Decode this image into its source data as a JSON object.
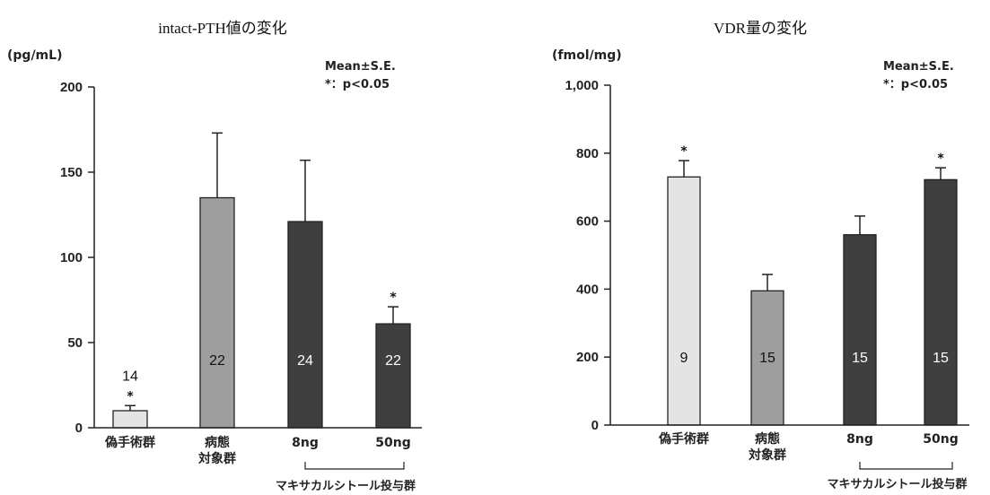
{
  "chart_data": [
    {
      "type": "bar",
      "title": "intact-PTH値の変化",
      "unit_label": "(pg/mL)",
      "legend_note": [
        "Mean±S.E.",
        "*：p<0.05"
      ],
      "categories": [
        [
          "偽手術群"
        ],
        [
          "病態",
          "対象群"
        ],
        [
          "8ng"
        ],
        [
          "50ng"
        ]
      ],
      "group_label": "マキサカルシトール投与群",
      "ylim": [
        0,
        200
      ],
      "yticks": [
        0,
        50,
        100,
        150,
        200
      ],
      "ytick_labels": [
        "0",
        "50",
        "100",
        "150",
        "200"
      ],
      "values": [
        10,
        135,
        121,
        61
      ],
      "errors": [
        3,
        38,
        36,
        10
      ],
      "n_labels": [
        "14",
        "22",
        "24",
        "22"
      ],
      "significant": [
        true,
        false,
        false,
        true
      ],
      "bar_colors": [
        "#e4e4e4",
        "#9e9e9e",
        "#3f3f3f",
        "#3f3f3f"
      ]
    },
    {
      "type": "bar",
      "title": "VDR量の変化",
      "unit_label": "(fmol/mg)",
      "legend_note": [
        "Mean±S.E.",
        "*：p<0.05"
      ],
      "categories": [
        [
          "偽手術群"
        ],
        [
          "病態",
          "対象群"
        ],
        [
          "8ng"
        ],
        [
          "50ng"
        ]
      ],
      "group_label": "マキサカルシトール投与群",
      "ylim": [
        0,
        1000
      ],
      "yticks": [
        0,
        200,
        400,
        600,
        800,
        1000
      ],
      "ytick_labels": [
        "0",
        "200",
        "400",
        "600",
        "800",
        "1,000"
      ],
      "values": [
        730,
        395,
        560,
        722
      ],
      "errors": [
        48,
        48,
        55,
        35
      ],
      "n_labels": [
        "9",
        "15",
        "15",
        "15"
      ],
      "significant": [
        true,
        false,
        false,
        true
      ],
      "bar_colors": [
        "#e4e4e4",
        "#9e9e9e",
        "#3f3f3f",
        "#3f3f3f"
      ]
    }
  ]
}
